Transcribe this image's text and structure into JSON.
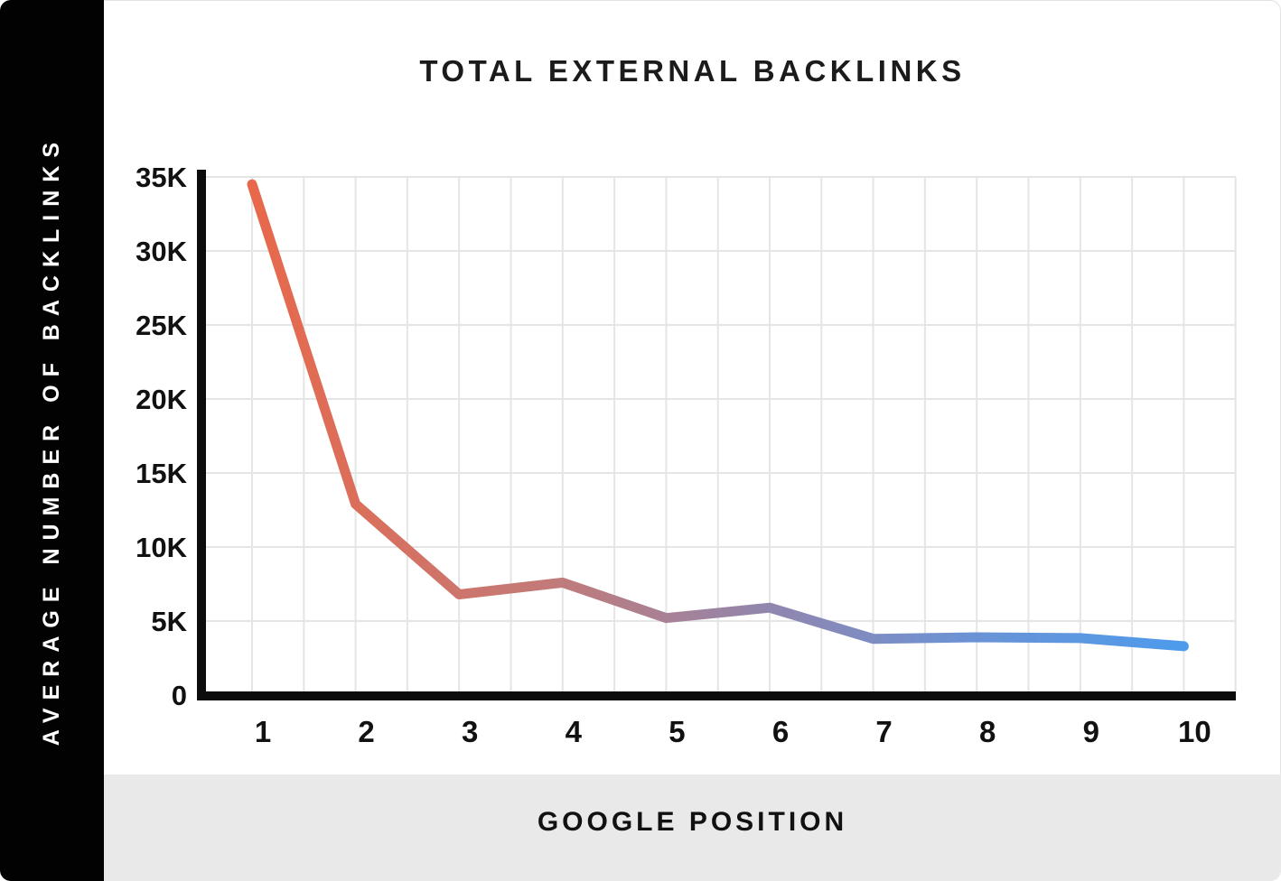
{
  "header": {
    "title": "TOTAL EXTERNAL BACKLINKS"
  },
  "left_panel": {
    "label": "AVERAGE NUMBER OF BACKLINKS"
  },
  "bottom_panel": {
    "label": "GOOGLE POSITION"
  },
  "chart_data": {
    "type": "line",
    "title": "TOTAL EXTERNAL BACKLINKS",
    "xlabel": "GOOGLE POSITION",
    "ylabel": "AVERAGE NUMBER OF BACKLINKS",
    "categories": [
      "1",
      "2",
      "3",
      "4",
      "5",
      "6",
      "7",
      "8",
      "9",
      "10"
    ],
    "values": [
      34500,
      12900,
      6800,
      7600,
      5200,
      5900,
      3800,
      3900,
      3850,
      3300
    ],
    "ylim": [
      0,
      35000
    ],
    "y_ticks": [
      {
        "value": 35000,
        "label": "35K"
      },
      {
        "value": 30000,
        "label": "30K"
      },
      {
        "value": 25000,
        "label": "25K"
      },
      {
        "value": 20000,
        "label": "20K"
      },
      {
        "value": 15000,
        "label": "15K"
      },
      {
        "value": 10000,
        "label": "10K"
      },
      {
        "value": 5000,
        "label": "5K"
      },
      {
        "value": 0,
        "label": "0"
      }
    ],
    "grid": true,
    "legend": "none",
    "line_gradient_stops": [
      {
        "offset": 0.0,
        "color": "#E8684B"
      },
      {
        "offset": 0.33,
        "color": "#C07B7B"
      },
      {
        "offset": 0.55,
        "color": "#9186AE"
      },
      {
        "offset": 0.77,
        "color": "#6B93D6"
      },
      {
        "offset": 1.0,
        "color": "#4D9BEC"
      }
    ]
  },
  "colors": {
    "sidebar_bg": "#020202",
    "sidebar_text": "#FFFFFF",
    "bottom_bar_bg": "#EAE9E9",
    "axis": "#0C0C0C",
    "gridline": "#E5E5E5",
    "title_text": "#1B1B1B",
    "line_start": "#E8684B",
    "line_end": "#4D9BEC"
  }
}
